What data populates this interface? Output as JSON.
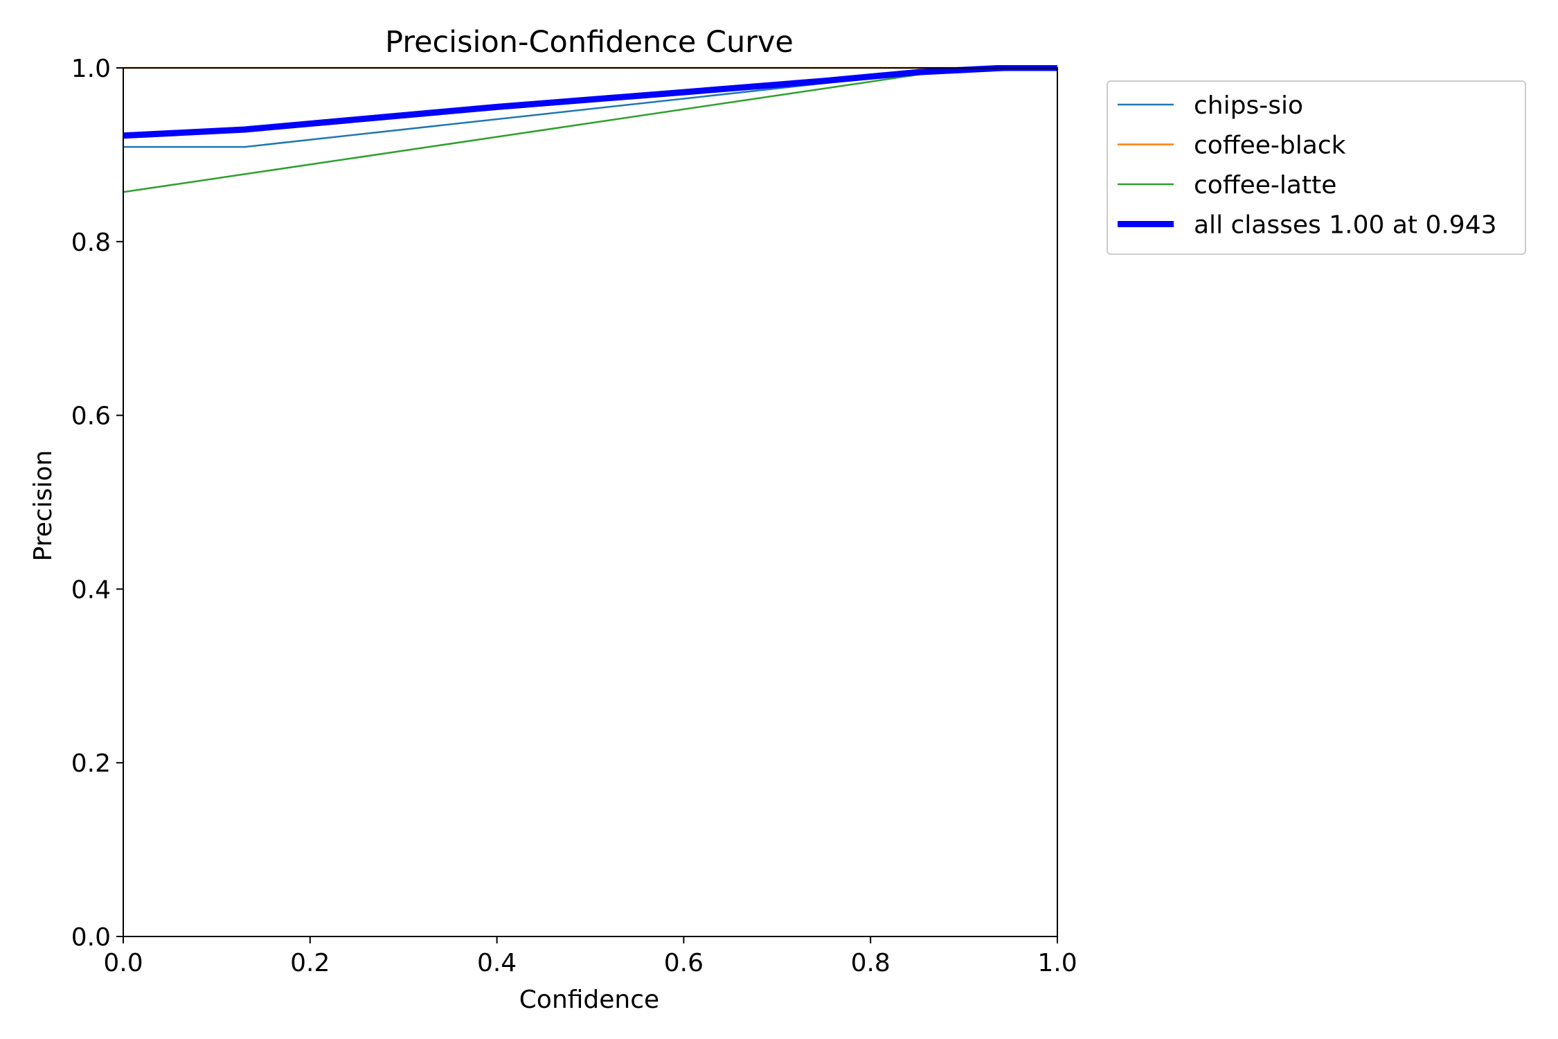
{
  "chart_data": {
    "type": "line",
    "title": "Precision-Confidence Curve",
    "xlabel": "Confidence",
    "ylabel": "Precision",
    "xlim": [
      0.0,
      1.0
    ],
    "ylim": [
      0.0,
      1.0
    ],
    "xticks": [
      "0.0",
      "0.2",
      "0.4",
      "0.6",
      "0.8",
      "1.0"
    ],
    "yticks": [
      "0.0",
      "0.2",
      "0.4",
      "0.6",
      "0.8",
      "1.0"
    ],
    "grid": false,
    "legend_position": "outside-top-right",
    "series": [
      {
        "name": "chips-sio",
        "color": "#1f77b4",
        "width": "thin",
        "x": [
          0.0,
          0.13,
          0.9,
          1.0
        ],
        "y": [
          0.909,
          0.909,
          1.0,
          1.0
        ]
      },
      {
        "name": "coffee-black",
        "color": "#ff7f0e",
        "width": "thin",
        "x": [
          0.0,
          1.0
        ],
        "y": [
          1.0,
          1.0
        ]
      },
      {
        "name": "coffee-latte",
        "color": "#2ca02c",
        "width": "thin",
        "x": [
          0.0,
          0.9,
          1.0
        ],
        "y": [
          0.857,
          1.0,
          1.0
        ]
      },
      {
        "name": "all classes 1.00 at 0.943",
        "color": "#0000ff",
        "width": "thick",
        "x": [
          0.0,
          0.13,
          0.4,
          0.6,
          0.75,
          0.85,
          0.943,
          1.0
        ],
        "y": [
          0.922,
          0.929,
          0.955,
          0.972,
          0.985,
          0.995,
          1.0,
          1.0
        ]
      }
    ]
  }
}
